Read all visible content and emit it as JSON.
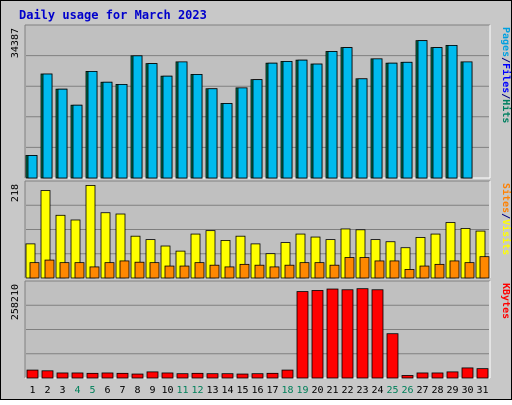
{
  "chart_data": {
    "type": "bar",
    "title": "Daily usage for March 2023",
    "categories": [
      "1",
      "2",
      "3",
      "4",
      "5",
      "6",
      "7",
      "8",
      "9",
      "10",
      "11",
      "12",
      "13",
      "14",
      "15",
      "16",
      "17",
      "18",
      "19",
      "20",
      "21",
      "22",
      "23",
      "24",
      "25",
      "26",
      "27",
      "28",
      "29",
      "30",
      "31"
    ],
    "weekend_days": [
      "4",
      "5",
      "11",
      "12",
      "18",
      "19",
      "25",
      "26"
    ],
    "panels": [
      {
        "id": "top",
        "max_label": "34387",
        "ylim": [
          0,
          34387
        ],
        "legend": [
          {
            "text": "Pages",
            "color": "#00a0e0"
          },
          {
            "text": "/",
            "color": "#000080"
          },
          {
            "text": "Files",
            "color": "#0000ff"
          },
          {
            "text": "/",
            "color": "#000080"
          },
          {
            "text": "Hits",
            "color": "#008060"
          }
        ],
        "series": [
          {
            "name": "Hits",
            "color": "#00805a",
            "values": [
              5200,
              24000,
              20500,
              16800,
              24600,
              22100,
              21600,
              28200,
              26400,
              23500,
              26800,
              23900,
              20600,
              17200,
              20800,
              22700,
              26500,
              26900,
              27200,
              26300,
              29200,
              30100,
              22900,
              27500,
              26500,
              26700,
              31700,
              30100,
              30600,
              26800,
              0
            ]
          },
          {
            "name": "Files",
            "color": "#0000ff",
            "values": [
              4800,
              23000,
              19800,
              16200,
              23800,
              21500,
              20900,
              27500,
              25700,
              22900,
              26200,
              23300,
              20000,
              16600,
              20100,
              22100,
              25800,
              26200,
              26500,
              25700,
              28600,
              29400,
              22300,
              26800,
              25900,
              26100,
              31000,
              29400,
              29800,
              26200,
              0
            ]
          },
          {
            "name": "Pages",
            "color": "#00bbee",
            "values": [
              5200,
              24000,
              20500,
              16800,
              24600,
              22100,
              21600,
              28200,
              26400,
              23500,
              26800,
              23900,
              20600,
              17200,
              20800,
              22700,
              26500,
              26900,
              27200,
              26300,
              29200,
              30100,
              22900,
              27500,
              26500,
              26700,
              31700,
              30100,
              30600,
              26800,
              0
            ]
          }
        ]
      },
      {
        "id": "middle",
        "max_label": "218",
        "ylim": [
          0,
          218
        ],
        "legend": [
          {
            "text": "Sites",
            "color": "#ff8000"
          },
          {
            "text": "/",
            "color": "#000080"
          },
          {
            "text": "Visits",
            "color": "#ffff00"
          }
        ],
        "series": [
          {
            "name": "Visits",
            "color": "#ffff00",
            "values": [
              80,
              205,
              147,
              136,
              217,
              153,
              150,
              98,
              90,
              75,
              63,
              103,
              111,
              88,
              98,
              80,
              57,
              83,
              103,
              96,
              90,
              115,
              113,
              90,
              85,
              71,
              95,
              103,
              130,
              116,
              110
            ]
          },
          {
            "name": "Sites",
            "color": "#ff8800",
            "values": [
              36,
              42,
              36,
              36,
              26,
              36,
              40,
              37,
              36,
              28,
              28,
              36,
              30,
              26,
              32,
              30,
              26,
              30,
              36,
              36,
              30,
              48,
              48,
              40,
              40,
              20,
              28,
              32,
              40,
              36,
              50
            ]
          }
        ]
      },
      {
        "id": "bottom",
        "max_label": "258210",
        "ylim": [
          0,
          258210
        ],
        "legend": [
          {
            "text": "KBytes",
            "color": "#ff0000"
          }
        ],
        "series": [
          {
            "name": "KBytes",
            "color": "#ff0000",
            "values": [
              22000,
              20000,
              14000,
              14000,
              13000,
              14000,
              13000,
              11000,
              17000,
              14000,
              12000,
              13000,
              12000,
              12000,
              11000,
              12000,
              13000,
              22000,
              240000,
              243000,
              247000,
              245000,
              248000,
              245000,
              123000,
              7000,
              14000,
              14000,
              17000,
              28000,
              26000
            ]
          }
        ]
      }
    ],
    "grid": true,
    "bar_color_outline": "#000000",
    "weekday_label_color": "#000000",
    "weekend_label_color": "#00805a"
  }
}
